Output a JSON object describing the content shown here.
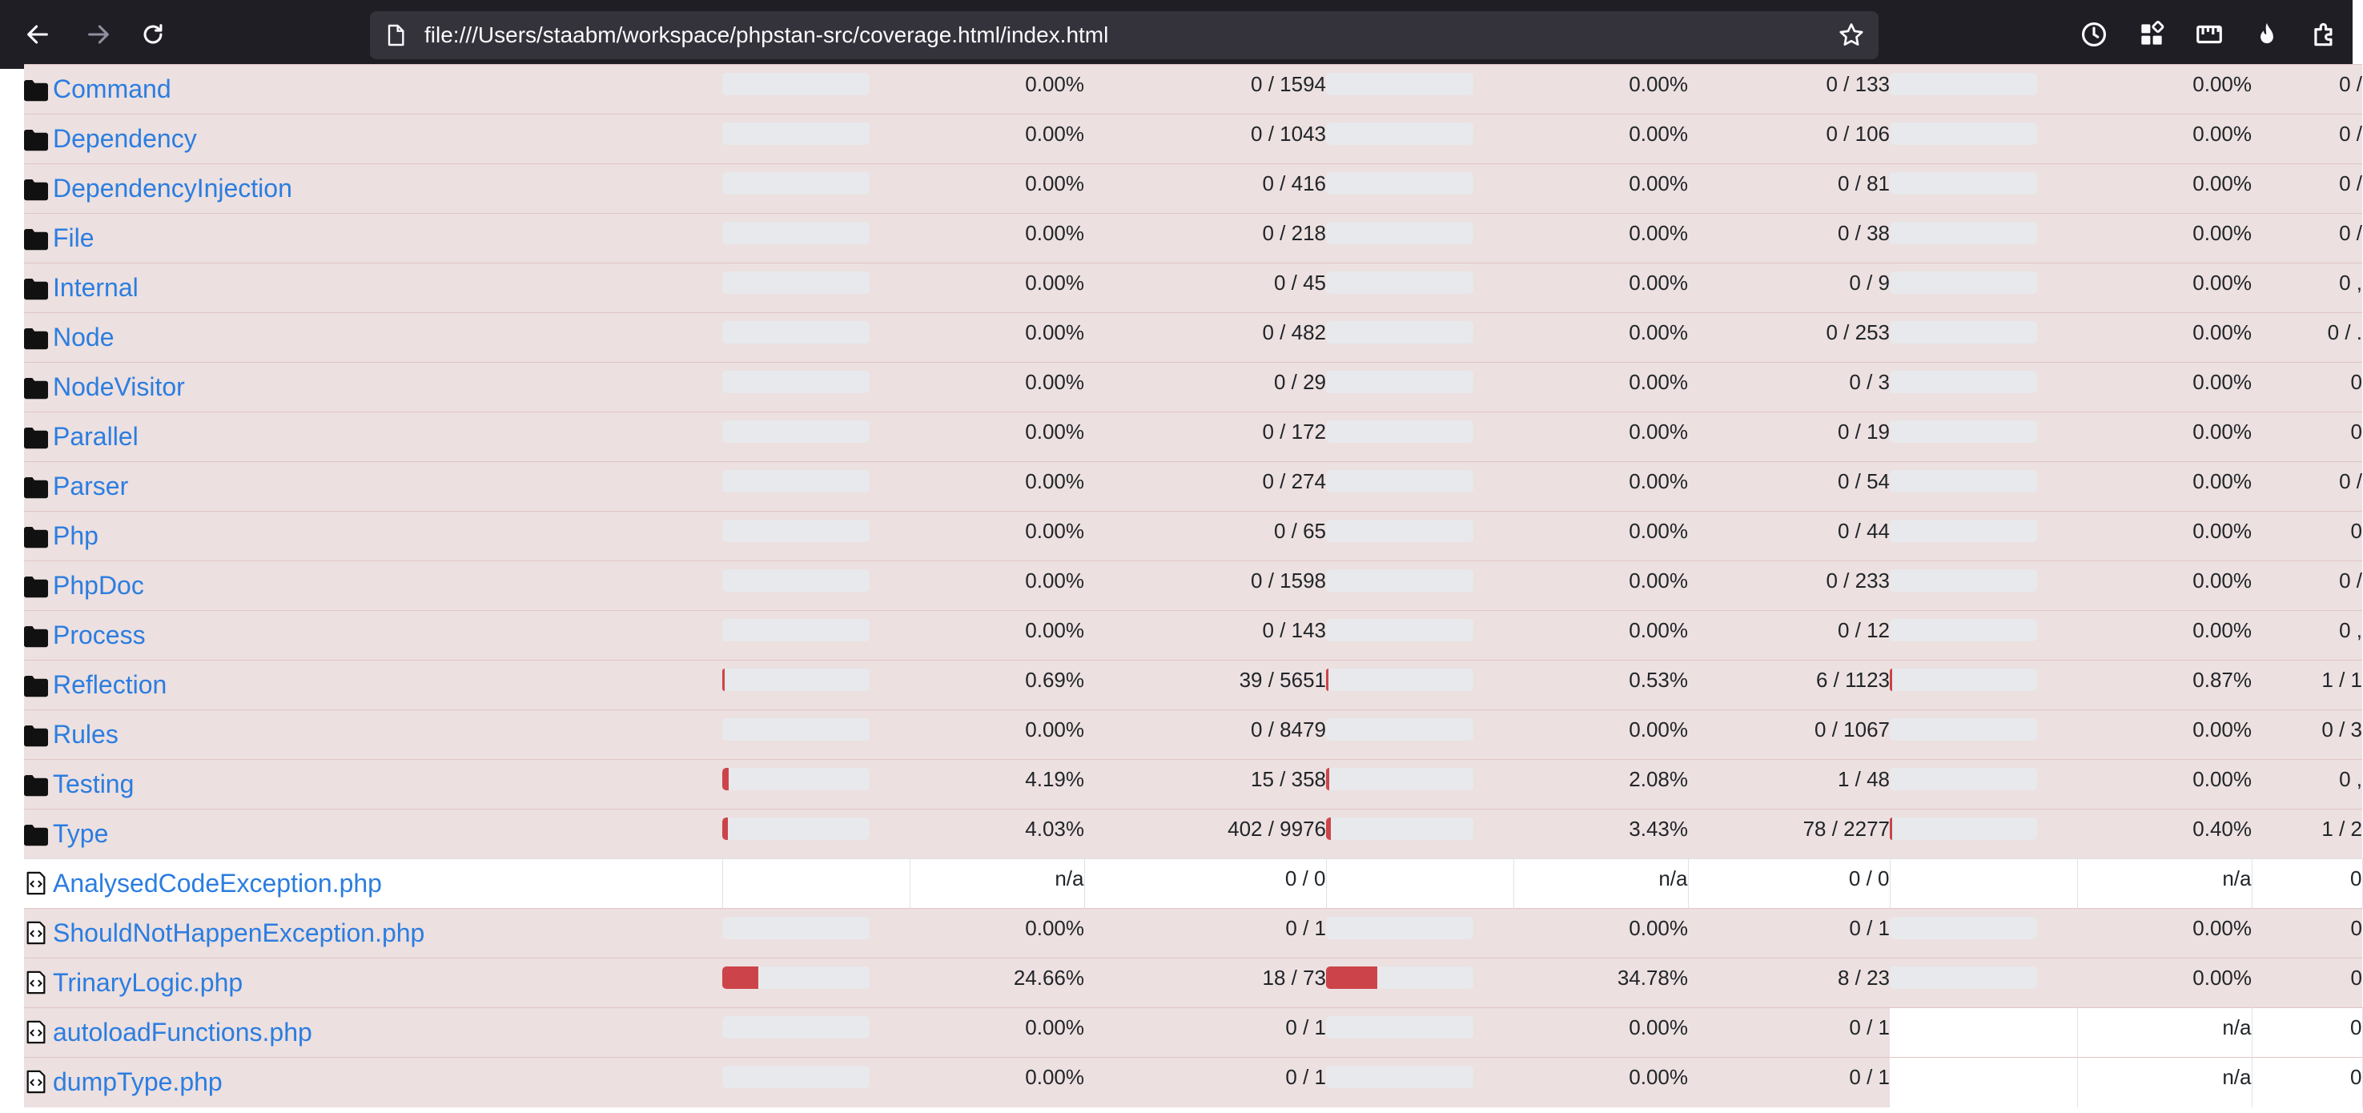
{
  "browser": {
    "url": "file:///Users/staabm/workspace/phpstan-src/coverage.html/index.html",
    "icons": [
      "back-arrow-icon",
      "forward-arrow-icon",
      "reload-icon",
      "page-icon",
      "bookmark-star-icon",
      "history-clock-icon",
      "extensions-grid-icon",
      "ruler-icon",
      "flame-icon",
      "puzzle-icon"
    ]
  },
  "colors": {
    "danger_row": "#ece0e0",
    "bar_fill": "#cc4449",
    "bar_track": "#e7e9ec",
    "link": "#2b7de0",
    "toolbar": "#1f1e25"
  },
  "rows": [
    {
      "name": "Command",
      "type": "dir",
      "lines": {
        "bar": 0,
        "pct": "0.00%",
        "count": "0 / 1594"
      },
      "functions": {
        "bar": 0,
        "pct": "0.00%",
        "count": "0 / 133"
      },
      "classes": {
        "bar": 0,
        "pct": "0.00%",
        "count": "0 /"
      }
    },
    {
      "name": "Dependency",
      "type": "dir",
      "lines": {
        "bar": 0,
        "pct": "0.00%",
        "count": "0 / 1043"
      },
      "functions": {
        "bar": 0,
        "pct": "0.00%",
        "count": "0 / 106"
      },
      "classes": {
        "bar": 0,
        "pct": "0.00%",
        "count": "0 /"
      }
    },
    {
      "name": "DependencyInjection",
      "type": "dir",
      "lines": {
        "bar": 0,
        "pct": "0.00%",
        "count": "0 / 416"
      },
      "functions": {
        "bar": 0,
        "pct": "0.00%",
        "count": "0 / 81"
      },
      "classes": {
        "bar": 0,
        "pct": "0.00%",
        "count": "0 /"
      }
    },
    {
      "name": "File",
      "type": "dir",
      "lines": {
        "bar": 0,
        "pct": "0.00%",
        "count": "0 / 218"
      },
      "functions": {
        "bar": 0,
        "pct": "0.00%",
        "count": "0 / 38"
      },
      "classes": {
        "bar": 0,
        "pct": "0.00%",
        "count": "0 /"
      }
    },
    {
      "name": "Internal",
      "type": "dir",
      "lines": {
        "bar": 0,
        "pct": "0.00%",
        "count": "0 / 45"
      },
      "functions": {
        "bar": 0,
        "pct": "0.00%",
        "count": "0 / 9"
      },
      "classes": {
        "bar": 0,
        "pct": "0.00%",
        "count": "0 ,"
      }
    },
    {
      "name": "Node",
      "type": "dir",
      "lines": {
        "bar": 0,
        "pct": "0.00%",
        "count": "0 / 482"
      },
      "functions": {
        "bar": 0,
        "pct": "0.00%",
        "count": "0 / 253"
      },
      "classes": {
        "bar": 0,
        "pct": "0.00%",
        "count": "0 / ."
      }
    },
    {
      "name": "NodeVisitor",
      "type": "dir",
      "lines": {
        "bar": 0,
        "pct": "0.00%",
        "count": "0 / 29"
      },
      "functions": {
        "bar": 0,
        "pct": "0.00%",
        "count": "0 / 3"
      },
      "classes": {
        "bar": 0,
        "pct": "0.00%",
        "count": "0"
      }
    },
    {
      "name": "Parallel",
      "type": "dir",
      "lines": {
        "bar": 0,
        "pct": "0.00%",
        "count": "0 / 172"
      },
      "functions": {
        "bar": 0,
        "pct": "0.00%",
        "count": "0 / 19"
      },
      "classes": {
        "bar": 0,
        "pct": "0.00%",
        "count": "0"
      }
    },
    {
      "name": "Parser",
      "type": "dir",
      "lines": {
        "bar": 0,
        "pct": "0.00%",
        "count": "0 / 274"
      },
      "functions": {
        "bar": 0,
        "pct": "0.00%",
        "count": "0 / 54"
      },
      "classes": {
        "bar": 0,
        "pct": "0.00%",
        "count": "0 /"
      }
    },
    {
      "name": "Php",
      "type": "dir",
      "lines": {
        "bar": 0,
        "pct": "0.00%",
        "count": "0 / 65"
      },
      "functions": {
        "bar": 0,
        "pct": "0.00%",
        "count": "0 / 44"
      },
      "classes": {
        "bar": 0,
        "pct": "0.00%",
        "count": "0"
      }
    },
    {
      "name": "PhpDoc",
      "type": "dir",
      "lines": {
        "bar": 0,
        "pct": "0.00%",
        "count": "0 / 1598"
      },
      "functions": {
        "bar": 0,
        "pct": "0.00%",
        "count": "0 / 233"
      },
      "classes": {
        "bar": 0,
        "pct": "0.00%",
        "count": "0 /"
      }
    },
    {
      "name": "Process",
      "type": "dir",
      "lines": {
        "bar": 0,
        "pct": "0.00%",
        "count": "0 / 143"
      },
      "functions": {
        "bar": 0,
        "pct": "0.00%",
        "count": "0 / 12"
      },
      "classes": {
        "bar": 0,
        "pct": "0.00%",
        "count": "0 ,"
      }
    },
    {
      "name": "Reflection",
      "type": "dir",
      "lines": {
        "bar": 0.69,
        "pct": "0.69%",
        "count": "39 / 5651"
      },
      "functions": {
        "bar": 0.53,
        "pct": "0.53%",
        "count": "6 / 1123"
      },
      "classes": {
        "bar": 0.87,
        "pct": "0.87%",
        "count": "1 / 1"
      }
    },
    {
      "name": "Rules",
      "type": "dir",
      "lines": {
        "bar": 0,
        "pct": "0.00%",
        "count": "0 / 8479"
      },
      "functions": {
        "bar": 0,
        "pct": "0.00%",
        "count": "0 / 1067"
      },
      "classes": {
        "bar": 0,
        "pct": "0.00%",
        "count": "0 / 3"
      }
    },
    {
      "name": "Testing",
      "type": "dir",
      "lines": {
        "bar": 4.19,
        "pct": "4.19%",
        "count": "15 / 358"
      },
      "functions": {
        "bar": 2.08,
        "pct": "2.08%",
        "count": "1 / 48"
      },
      "classes": {
        "bar": 0,
        "pct": "0.00%",
        "count": "0 ,"
      }
    },
    {
      "name": "Type",
      "type": "dir",
      "lines": {
        "bar": 4.03,
        "pct": "4.03%",
        "count": "402 / 9976"
      },
      "functions": {
        "bar": 3.43,
        "pct": "3.43%",
        "count": "78 / 2277"
      },
      "classes": {
        "bar": 0.4,
        "pct": "0.40%",
        "count": "1 / 2"
      }
    },
    {
      "name": "AnalysedCodeException.php",
      "type": "file",
      "lines": {
        "bar": null,
        "pct": "n/a",
        "count": "0 / 0"
      },
      "functions": {
        "bar": null,
        "pct": "n/a",
        "count": "0 / 0"
      },
      "classes": {
        "bar": null,
        "pct": "n/a",
        "count": "0"
      }
    },
    {
      "name": "ShouldNotHappenException.php",
      "type": "file",
      "lines": {
        "bar": 0,
        "pct": "0.00%",
        "count": "0 / 1"
      },
      "functions": {
        "bar": 0,
        "pct": "0.00%",
        "count": "0 / 1"
      },
      "classes": {
        "bar": 0,
        "pct": "0.00%",
        "count": "0"
      }
    },
    {
      "name": "TrinaryLogic.php",
      "type": "file",
      "lines": {
        "bar": 24.66,
        "pct": "24.66%",
        "count": "18 / 73"
      },
      "functions": {
        "bar": 34.78,
        "pct": "34.78%",
        "count": "8 / 23"
      },
      "classes": {
        "bar": 0,
        "pct": "0.00%",
        "count": "0"
      }
    },
    {
      "name": "autoloadFunctions.php",
      "type": "file",
      "lines": {
        "bar": 0,
        "pct": "0.00%",
        "count": "0 / 1"
      },
      "functions": {
        "bar": 0,
        "pct": "0.00%",
        "count": "0 / 1"
      },
      "classes": {
        "bar": null,
        "pct": "n/a",
        "count": "0"
      }
    },
    {
      "name": "dumpType.php",
      "type": "file",
      "lines": {
        "bar": 0,
        "pct": "0.00%",
        "count": "0 / 1"
      },
      "functions": {
        "bar": 0,
        "pct": "0.00%",
        "count": "0 / 1"
      },
      "classes": {
        "bar": null,
        "pct": "n/a",
        "count": "0"
      }
    }
  ]
}
